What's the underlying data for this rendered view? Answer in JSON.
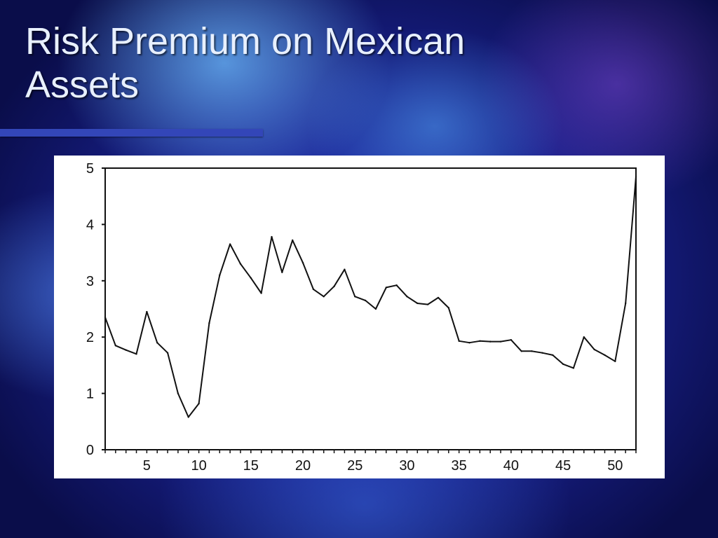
{
  "slide": {
    "title": "Risk Premium on Mexican Assets"
  },
  "colors": {
    "background": "#18208a",
    "title_text": "#e8f0ff",
    "title_rule": "#3346b8",
    "chart_background": "#ffffff",
    "series_line": "#111111"
  },
  "chart_data": {
    "type": "line",
    "title": "",
    "xlabel": "",
    "ylabel": "",
    "xlim": [
      1,
      52
    ],
    "ylim": [
      0,
      5
    ],
    "grid": false,
    "x_ticks": [
      5,
      10,
      15,
      20,
      25,
      30,
      35,
      40,
      45,
      50
    ],
    "y_ticks": [
      0,
      1,
      2,
      3,
      4,
      5
    ],
    "x": [
      1,
      2,
      3,
      4,
      5,
      6,
      7,
      8,
      9,
      10,
      11,
      12,
      13,
      14,
      15,
      16,
      17,
      18,
      19,
      20,
      21,
      22,
      23,
      24,
      25,
      26,
      27,
      28,
      29,
      30,
      31,
      32,
      33,
      34,
      35,
      36,
      37,
      38,
      39,
      40,
      41,
      42,
      43,
      44,
      45,
      46,
      47,
      48,
      49,
      50,
      51,
      52
    ],
    "series": [
      {
        "values": [
          2.35,
          1.85,
          1.77,
          1.7,
          2.45,
          1.9,
          1.72,
          1.0,
          0.58,
          0.82,
          2.25,
          3.1,
          3.65,
          3.3,
          3.05,
          2.78,
          3.78,
          3.15,
          3.72,
          3.32,
          2.85,
          2.72,
          2.9,
          3.2,
          2.72,
          2.65,
          2.5,
          2.88,
          2.92,
          2.72,
          2.6,
          2.58,
          2.7,
          2.52,
          1.93,
          1.9,
          1.93,
          1.92,
          1.92,
          1.95,
          1.75,
          1.75,
          1.72,
          1.68,
          1.52,
          1.45,
          2.0,
          1.78,
          1.68,
          1.57,
          2.6,
          4.85
        ]
      }
    ]
  }
}
